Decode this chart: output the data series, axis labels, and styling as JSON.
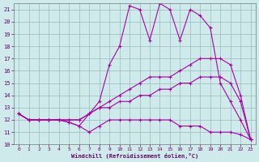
{
  "xlabel": "Windchill (Refroidissement éolien,°C)",
  "xlim": [
    -0.5,
    23.5
  ],
  "ylim": [
    10,
    21.5
  ],
  "yticks": [
    10,
    11,
    12,
    13,
    14,
    15,
    16,
    17,
    18,
    19,
    20,
    21
  ],
  "xticks": [
    0,
    1,
    2,
    3,
    4,
    5,
    6,
    7,
    8,
    9,
    10,
    11,
    12,
    13,
    14,
    15,
    16,
    17,
    18,
    19,
    20,
    21,
    22,
    23
  ],
  "background_color": "#ceeaea",
  "line_color": "#aa00aa",
  "grid_color": "#99bbbb",
  "lines": [
    {
      "x": [
        0,
        1,
        2,
        3,
        4,
        5,
        6,
        7,
        8,
        9,
        10,
        11,
        12,
        13,
        14,
        15,
        16,
        17,
        18,
        19,
        20,
        21,
        22,
        23
      ],
      "y": [
        12.5,
        12.0,
        12.0,
        12.0,
        12.0,
        11.8,
        11.5,
        12.5,
        13.5,
        16.5,
        18.0,
        21.3,
        21.0,
        18.5,
        21.5,
        21.0,
        18.5,
        21.0,
        20.5,
        19.5,
        15.0,
        13.5,
        12.0,
        10.4
      ]
    },
    {
      "x": [
        0,
        1,
        2,
        3,
        4,
        5,
        6,
        7,
        8,
        9,
        10,
        11,
        12,
        13,
        14,
        15,
        16,
        17,
        18,
        19,
        20,
        21,
        22,
        23
      ],
      "y": [
        12.5,
        12.0,
        12.0,
        12.0,
        12.0,
        12.0,
        12.0,
        12.5,
        13.0,
        13.5,
        14.0,
        14.5,
        15.0,
        15.5,
        15.5,
        15.5,
        16.0,
        16.5,
        17.0,
        17.0,
        17.0,
        16.5,
        14.0,
        10.4
      ]
    },
    {
      "x": [
        0,
        1,
        2,
        3,
        4,
        5,
        6,
        7,
        8,
        9,
        10,
        11,
        12,
        13,
        14,
        15,
        16,
        17,
        18,
        19,
        20,
        21,
        22,
        23
      ],
      "y": [
        12.5,
        12.0,
        12.0,
        12.0,
        12.0,
        12.0,
        12.0,
        12.5,
        13.0,
        13.0,
        13.5,
        13.5,
        14.0,
        14.0,
        14.5,
        14.5,
        15.0,
        15.0,
        15.5,
        15.5,
        15.5,
        15.0,
        13.5,
        10.4
      ]
    },
    {
      "x": [
        0,
        1,
        2,
        3,
        4,
        5,
        6,
        7,
        8,
        9,
        10,
        11,
        12,
        13,
        14,
        15,
        16,
        17,
        18,
        19,
        20,
        21,
        22,
        23
      ],
      "y": [
        12.5,
        12.0,
        12.0,
        12.0,
        12.0,
        11.8,
        11.5,
        11.0,
        11.5,
        12.0,
        12.0,
        12.0,
        12.0,
        12.0,
        12.0,
        12.0,
        11.5,
        11.5,
        11.5,
        11.0,
        11.0,
        11.0,
        10.8,
        10.4
      ]
    }
  ]
}
